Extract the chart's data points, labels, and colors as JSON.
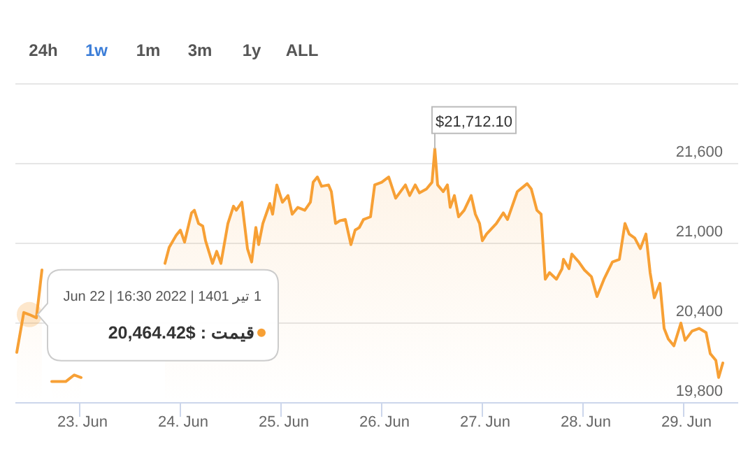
{
  "chart_data": {
    "type": "area",
    "grid": "y",
    "marker": "none",
    "line_style": "solid",
    "xlim": [
      "2022-06-22T08:40",
      "2022-06-29T13:00"
    ],
    "xticks": [
      {
        "value": "2022-06-23",
        "label": "23. Jun"
      },
      {
        "value": "2022-06-24",
        "label": "24. Jun"
      },
      {
        "value": "2022-06-25",
        "label": "25. Jun"
      },
      {
        "value": "2022-06-26",
        "label": "26. Jun"
      },
      {
        "value": "2022-06-27",
        "label": "27. Jun"
      },
      {
        "value": "2022-06-28",
        "label": "28. Jun"
      },
      {
        "value": "2022-06-29",
        "label": "29. Jun"
      }
    ],
    "ylim": [
      19800,
      22200
    ],
    "yticks": [
      {
        "value": 19800,
        "label": "19,800"
      },
      {
        "value": 20400,
        "label": "20,400"
      },
      {
        "value": 21000,
        "label": "21,000"
      },
      {
        "value": 21600,
        "label": "21,600"
      },
      {
        "value": 22200,
        "label": null
      }
    ],
    "annotations": [
      "24h",
      "1w",
      "1m",
      "3m",
      "1y",
      "ALL",
      {
        "text": "$21,712.10",
        "x": "2022-06-26T12:40",
        "y": 21712.1
      },
      {
        "text": "1 تیر 1401 | 2022 16:30 | Jun 22",
        "x": "2022-06-22T12:00",
        "y": 20464.42
      },
      "20,464.42$ : قیمت"
    ],
    "series": [
      {
        "color": "#f7a035",
        "x": [
          "2022-06-22T09:00",
          "2022-06-22T10:40",
          "2022-06-22T12:00",
          "2022-06-22T13:40",
          "2022-06-22T15:00",
          "2022-06-22T16:00",
          "2022-06-22T16:40",
          "2022-06-22T17:20",
          "2022-06-22T20:40",
          "2022-06-22T22:40",
          "2022-06-23T00:20",
          "2022-06-23T10:00",
          "2022-06-23T20:20",
          "2022-06-23T21:20",
          "2022-06-23T23:00",
          "2022-06-24T00:00",
          "2022-06-24T01:00",
          "2022-06-24T02:40",
          "2022-06-24T03:20",
          "2022-06-24T04:20",
          "2022-06-24T05:20",
          "2022-06-24T06:00",
          "2022-06-24T07:40",
          "2022-06-24T08:40",
          "2022-06-24T09:40",
          "2022-06-24T11:20",
          "2022-06-24T12:40",
          "2022-06-24T13:20",
          "2022-06-24T14:40",
          "2022-06-24T16:00",
          "2022-06-24T17:00",
          "2022-06-24T18:00",
          "2022-06-24T18:40",
          "2022-06-24T19:40",
          "2022-06-24T21:20",
          "2022-06-24T22:00",
          "2022-06-24T23:00",
          "2022-06-25T00:20",
          "2022-06-25T01:40",
          "2022-06-25T02:40",
          "2022-06-25T04:00",
          "2022-06-25T05:40",
          "2022-06-25T07:00",
          "2022-06-25T07:40",
          "2022-06-25T08:40",
          "2022-06-25T09:40",
          "2022-06-25T11:20",
          "2022-06-25T12:00",
          "2022-06-25T13:00",
          "2022-06-25T14:00",
          "2022-06-25T15:20",
          "2022-06-25T16:40",
          "2022-06-25T17:40",
          "2022-06-25T18:40",
          "2022-06-25T19:40",
          "2022-06-25T21:20",
          "2022-06-25T22:20",
          "2022-06-26T00:00",
          "2022-06-26T01:40",
          "2022-06-26T03:20",
          "2022-06-26T05:40",
          "2022-06-26T06:40",
          "2022-06-26T08:00",
          "2022-06-26T09:00",
          "2022-06-26T10:40",
          "2022-06-26T12:00",
          "2022-06-26T12:40",
          "2022-06-26T13:20",
          "2022-06-26T14:40",
          "2022-06-26T15:40",
          "2022-06-26T16:20",
          "2022-06-26T17:20",
          "2022-06-26T18:20",
          "2022-06-26T19:40",
          "2022-06-26T21:20",
          "2022-06-26T22:20",
          "2022-06-26T23:20",
          "2022-06-27T00:00",
          "2022-06-27T01:00",
          "2022-06-27T03:20",
          "2022-06-27T05:00",
          "2022-06-27T06:00",
          "2022-06-27T08:20",
          "2022-06-27T10:40",
          "2022-06-27T11:40",
          "2022-06-27T13:00",
          "2022-06-27T14:00",
          "2022-06-27T15:00",
          "2022-06-27T16:00",
          "2022-06-27T17:40",
          "2022-06-27T19:00",
          "2022-06-27T19:20",
          "2022-06-27T20:40",
          "2022-06-27T21:20",
          "2022-06-27T23:00",
          "2022-06-28T00:20",
          "2022-06-28T02:00",
          "2022-06-28T03:20",
          "2022-06-28T05:00",
          "2022-06-28T07:00",
          "2022-06-28T08:40",
          "2022-06-28T10:00",
          "2022-06-28T11:00",
          "2022-06-28T12:20",
          "2022-06-28T13:40",
          "2022-06-28T15:00",
          "2022-06-28T16:00",
          "2022-06-28T17:00",
          "2022-06-28T18:20",
          "2022-06-28T19:20",
          "2022-06-28T20:20",
          "2022-06-28T21:40",
          "2022-06-28T23:20",
          "2022-06-29T00:20",
          "2022-06-29T02:00",
          "2022-06-29T03:40",
          "2022-06-29T05:20",
          "2022-06-29T06:20",
          "2022-06-29T07:40",
          "2022-06-29T08:20",
          "2022-06-29T09:20"
        ],
        "values": [
          20180,
          20480,
          20464.42,
          20440,
          20800,
          null,
          null,
          19960,
          19960,
          20010,
          19990,
          null,
          20850,
          20970,
          21060,
          21100,
          21010,
          21230,
          21250,
          21150,
          21130,
          21020,
          20850,
          20940,
          20850,
          21150,
          21280,
          21250,
          21310,
          20960,
          20860,
          21120,
          20990,
          21150,
          21300,
          21220,
          21440,
          21310,
          21360,
          21220,
          21270,
          21250,
          21310,
          21460,
          21500,
          21430,
          21440,
          21390,
          21150,
          21170,
          21180,
          20990,
          21100,
          21120,
          21180,
          21200,
          21440,
          21460,
          21500,
          21340,
          21440,
          21360,
          21440,
          21380,
          21410,
          21460,
          21712.1,
          21440,
          21390,
          21440,
          21270,
          21360,
          21200,
          21250,
          21360,
          21220,
          21150,
          21020,
          21070,
          21150,
          21230,
          21180,
          21390,
          21450,
          21410,
          21250,
          21220,
          20730,
          20780,
          20730,
          20810,
          20880,
          20810,
          20920,
          20860,
          20800,
          20750,
          20600,
          20730,
          20860,
          20880,
          21150,
          21070,
          21040,
          20960,
          21070,
          20780,
          20590,
          20700,
          20360,
          20280,
          20230,
          20400,
          20270,
          20340,
          20360,
          20330,
          20170,
          20120,
          19990,
          20100
        ]
      }
    ]
  }
}
